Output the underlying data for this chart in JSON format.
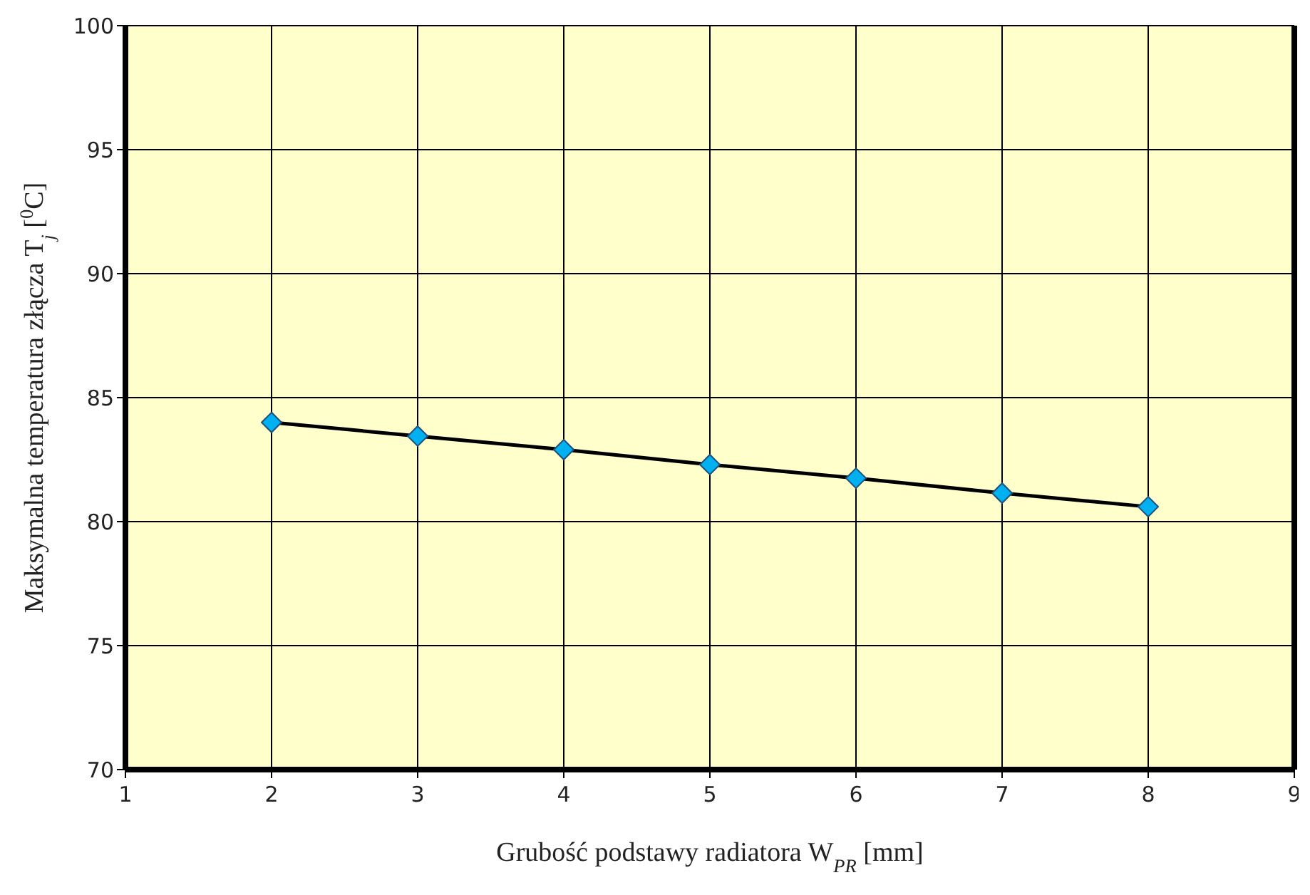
{
  "chart_data": {
    "type": "line",
    "xlabel": "Grubość podstawy radiatora W$_{PR}$ [mm]",
    "ylabel": "Maksymalna temperatura złącza  T$_{j}$ [$^{0}$C]",
    "x": [
      2,
      3,
      4,
      5,
      6,
      7,
      8
    ],
    "series": [
      {
        "color": "#00b0f0",
        "values": [
          84.0,
          83.45,
          82.9,
          82.3,
          81.75,
          81.15,
          80.6
        ]
      }
    ],
    "xlim": [
      1,
      9
    ],
    "xticks": [
      1,
      2,
      3,
      4,
      5,
      6,
      7,
      8,
      9
    ],
    "ylim": [
      70,
      100
    ],
    "yticks": [
      70,
      75,
      80,
      85,
      90,
      95,
      100
    ],
    "grid": true,
    "legend": false,
    "marker": "diamond",
    "line_style": "solid"
  }
}
